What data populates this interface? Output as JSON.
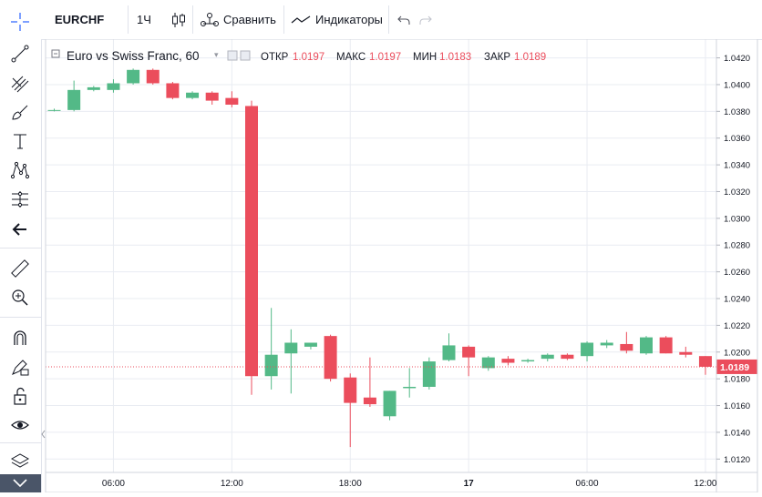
{
  "toolbar": {
    "symbol": "EURCHF",
    "interval": "1Ч",
    "compare_label": "Сравнить",
    "indicators_label": "Индикаторы"
  },
  "sidebar": {
    "tools": [
      "crosshair-icon",
      "trend-line-icon",
      "pitchfork-icon",
      "brush-icon",
      "text-icon",
      "pattern-icon",
      "prediction-icon",
      "back-arrow-icon",
      "ruler-icon",
      "zoom-icon",
      "magnet-icon",
      "lock-drawing-icon",
      "unlock-icon",
      "eye-icon",
      "layers-icon"
    ]
  },
  "legend": {
    "title": "Euro vs Swiss Franc, 60",
    "open_label": "ОТКР",
    "open_value": "1.0197",
    "high_label": "МАКС",
    "high_value": "1.0197",
    "low_label": "МИН",
    "low_value": "1.0183",
    "close_label": "ЗАКР",
    "close_value": "1.0189"
  },
  "colors": {
    "up": "#53b987",
    "down": "#eb4d5c",
    "price_line": "#eb4d5c",
    "grid": "#e9ecf2"
  },
  "chart_data": {
    "type": "candlestick",
    "title": "Euro vs Swiss Franc, 60",
    "symbol": "EURCHF",
    "interval": "60",
    "ylim": [
      1.011,
      1.0434
    ],
    "y_ticks": [
      "1.0420",
      "1.0400",
      "1.0380",
      "1.0360",
      "1.0340",
      "1.0320",
      "1.0300",
      "1.0280",
      "1.0260",
      "1.0240",
      "1.0220",
      "1.0200",
      "1.0180",
      "1.0160",
      "1.0140",
      "1.0120"
    ],
    "x_ticks": [
      "06:00",
      "12:00",
      "18:00",
      "17",
      "06:00",
      "12:00"
    ],
    "x_tick_index": [
      3,
      9,
      15,
      21,
      27,
      33
    ],
    "last_price": "1.0189",
    "candles": [
      {
        "o": 1.0381,
        "h": 1.0382,
        "l": 1.038,
        "c": 1.0381
      },
      {
        "o": 1.0381,
        "h": 1.0403,
        "l": 1.038,
        "c": 1.0396
      },
      {
        "o": 1.0396,
        "h": 1.0399,
        "l": 1.0395,
        "c": 1.0398
      },
      {
        "o": 1.0396,
        "h": 1.0404,
        "l": 1.0394,
        "c": 1.0401
      },
      {
        "o": 1.0401,
        "h": 1.0412,
        "l": 1.04,
        "c": 1.0411
      },
      {
        "o": 1.0411,
        "h": 1.0412,
        "l": 1.04,
        "c": 1.0401
      },
      {
        "o": 1.0401,
        "h": 1.0402,
        "l": 1.0389,
        "c": 1.039
      },
      {
        "o": 1.039,
        "h": 1.0395,
        "l": 1.0389,
        "c": 1.0394
      },
      {
        "o": 1.0394,
        "h": 1.0395,
        "l": 1.0385,
        "c": 1.0388
      },
      {
        "o": 1.039,
        "h": 1.0395,
        "l": 1.0383,
        "c": 1.0385
      },
      {
        "o": 1.0384,
        "h": 1.0388,
        "l": 1.0168,
        "c": 1.0182
      },
      {
        "o": 1.0182,
        "h": 1.0233,
        "l": 1.0172,
        "c": 1.0198
      },
      {
        "o": 1.0199,
        "h": 1.0217,
        "l": 1.0169,
        "c": 1.0207
      },
      {
        "o": 1.0204,
        "h": 1.0207,
        "l": 1.0202,
        "c": 1.0207
      },
      {
        "o": 1.0212,
        "h": 1.0213,
        "l": 1.0178,
        "c": 1.018
      },
      {
        "o": 1.0181,
        "h": 1.0184,
        "l": 1.0129,
        "c": 1.0162
      },
      {
        "o": 1.0166,
        "h": 1.0196,
        "l": 1.0159,
        "c": 1.0161
      },
      {
        "o": 1.0152,
        "h": 1.0171,
        "l": 1.0149,
        "c": 1.0171
      },
      {
        "o": 1.0173,
        "h": 1.0188,
        "l": 1.0166,
        "c": 1.0174
      },
      {
        "o": 1.0174,
        "h": 1.0196,
        "l": 1.0172,
        "c": 1.0193
      },
      {
        "o": 1.0194,
        "h": 1.0214,
        "l": 1.0193,
        "c": 1.0205
      },
      {
        "o": 1.0204,
        "h": 1.0205,
        "l": 1.0182,
        "c": 1.0196
      },
      {
        "o": 1.0188,
        "h": 1.0197,
        "l": 1.0186,
        "c": 1.0196
      },
      {
        "o": 1.0195,
        "h": 1.0197,
        "l": 1.019,
        "c": 1.0192
      },
      {
        "o": 1.0193,
        "h": 1.0195,
        "l": 1.0192,
        "c": 1.0194
      },
      {
        "o": 1.0195,
        "h": 1.0199,
        "l": 1.0193,
        "c": 1.0198
      },
      {
        "o": 1.0198,
        "h": 1.0199,
        "l": 1.0194,
        "c": 1.0195
      },
      {
        "o": 1.0197,
        "h": 1.0208,
        "l": 1.0193,
        "c": 1.0207
      },
      {
        "o": 1.0205,
        "h": 1.0209,
        "l": 1.0203,
        "c": 1.0207
      },
      {
        "o": 1.0206,
        "h": 1.0215,
        "l": 1.0199,
        "c": 1.0201
      },
      {
        "o": 1.0199,
        "h": 1.0212,
        "l": 1.0198,
        "c": 1.0211
      },
      {
        "o": 1.0211,
        "h": 1.0212,
        "l": 1.0199,
        "c": 1.0199
      },
      {
        "o": 1.02,
        "h": 1.0204,
        "l": 1.0196,
        "c": 1.0198
      },
      {
        "o": 1.0197,
        "h": 1.0197,
        "l": 1.0183,
        "c": 1.0189
      }
    ]
  }
}
